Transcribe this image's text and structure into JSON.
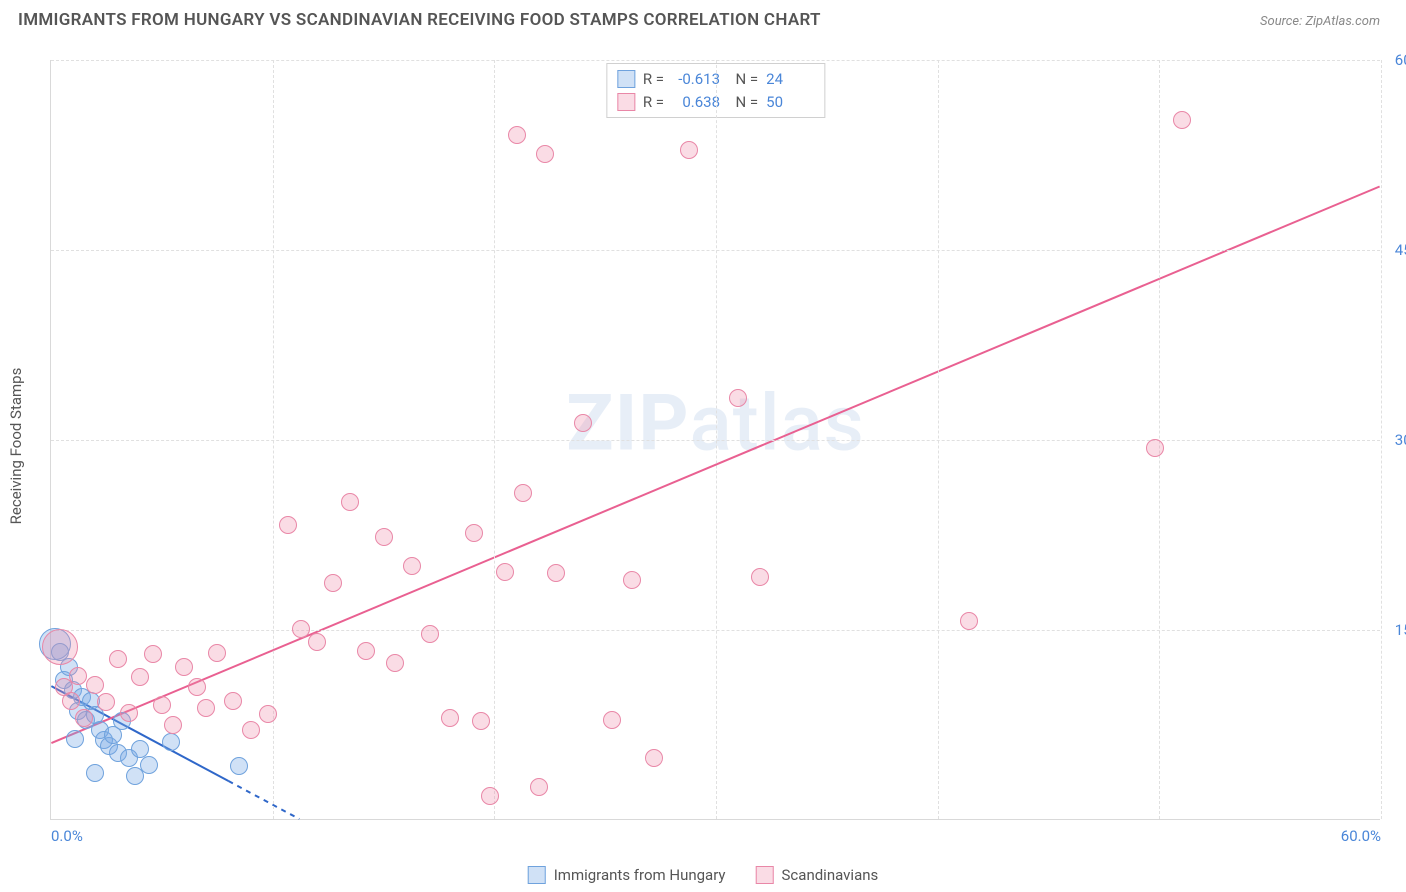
{
  "title": "IMMIGRANTS FROM HUNGARY VS SCANDINAVIAN RECEIVING FOOD STAMPS CORRELATION CHART",
  "source_label": "Source:",
  "source_value": "ZipAtlas.com",
  "ylabel": "Receiving Food Stamps",
  "watermark_bold": "ZIP",
  "watermark_rest": "atlas",
  "chart": {
    "type": "scatter",
    "xlim": [
      0,
      60
    ],
    "ylim": [
      0,
      60
    ],
    "xticks": [
      0,
      60
    ],
    "xtick_labels": [
      "0.0%",
      "60.0%"
    ],
    "yticks": [
      15,
      30,
      45,
      60
    ],
    "ytick_labels": [
      "15.0%",
      "30.0%",
      "45.0%",
      "60.0%"
    ],
    "vgrid": [
      10,
      20,
      30,
      40,
      50,
      60
    ],
    "background_color": "#ffffff",
    "grid_color": "#e0e0e0",
    "axis_color": "#d9d9d9",
    "tick_font_color": "#4a86d8",
    "marker_radius": 9,
    "marker_stroke_width": 1.2,
    "line_width": 2
  },
  "series": [
    {
      "key": "hungary",
      "name": "Immigrants from Hungary",
      "fill_color": "rgba(120, 170, 230, 0.35)",
      "stroke_color": "#6fa2dd",
      "line_color": "#2f67c9",
      "R_label": "R =",
      "R_value": "-0.613",
      "N_label": "N =",
      "N_value": "24",
      "trend": {
        "x0": 0,
        "y0": 10.5,
        "x1": 11.2,
        "y1": 0,
        "dash_after_x": 8
      },
      "points": [
        [
          0.2,
          13.8,
          16
        ],
        [
          0.4,
          13.2
        ],
        [
          0.6,
          11.0
        ],
        [
          0.8,
          12.0
        ],
        [
          1.0,
          10.2
        ],
        [
          1.2,
          8.5
        ],
        [
          1.4,
          9.6
        ],
        [
          1.6,
          7.8
        ],
        [
          1.8,
          9.3
        ],
        [
          1.1,
          6.3
        ],
        [
          2.0,
          8.2
        ],
        [
          2.2,
          7.0
        ],
        [
          2.4,
          6.2
        ],
        [
          2.6,
          5.8
        ],
        [
          2.8,
          6.6
        ],
        [
          3.0,
          5.2
        ],
        [
          3.2,
          7.7
        ],
        [
          3.5,
          4.8
        ],
        [
          4.0,
          5.5
        ],
        [
          4.4,
          4.3
        ],
        [
          2.0,
          3.6
        ],
        [
          3.8,
          3.4
        ],
        [
          5.4,
          6.1
        ],
        [
          8.5,
          4.2
        ]
      ]
    },
    {
      "key": "scandinavians",
      "name": "Scandinavians",
      "fill_color": "rgba(240, 140, 170, 0.30)",
      "stroke_color": "#e987a7",
      "line_color": "#e96091",
      "R_label": "R =",
      "R_value": "0.638",
      "N_label": "N =",
      "N_value": "50",
      "trend": {
        "x0": 0,
        "y0": 6.0,
        "x1": 60,
        "y1": 50
      },
      "points": [
        [
          0.4,
          13.6,
          18
        ],
        [
          0.6,
          10.4
        ],
        [
          0.9,
          9.3
        ],
        [
          1.2,
          11.3
        ],
        [
          1.5,
          8.0
        ],
        [
          2.0,
          10.6
        ],
        [
          2.5,
          9.2
        ],
        [
          3.0,
          12.6
        ],
        [
          3.5,
          8.4
        ],
        [
          4.0,
          11.2
        ],
        [
          4.6,
          13.0
        ],
        [
          5.0,
          9.0
        ],
        [
          5.5,
          7.4
        ],
        [
          6.0,
          12.0
        ],
        [
          6.6,
          10.4
        ],
        [
          7.0,
          8.8
        ],
        [
          7.5,
          13.1
        ],
        [
          8.2,
          9.3
        ],
        [
          9.0,
          7.0
        ],
        [
          9.8,
          8.3
        ],
        [
          10.7,
          23.2
        ],
        [
          11.3,
          15.0
        ],
        [
          12.0,
          14.0
        ],
        [
          12.7,
          18.6
        ],
        [
          13.5,
          25.0
        ],
        [
          14.2,
          13.3
        ],
        [
          15.0,
          22.3
        ],
        [
          15.5,
          12.3
        ],
        [
          16.3,
          20.0
        ],
        [
          17.1,
          14.6
        ],
        [
          18.0,
          8.0
        ],
        [
          19.1,
          22.6
        ],
        [
          19.4,
          7.7
        ],
        [
          20.5,
          19.5
        ],
        [
          21.3,
          25.7
        ],
        [
          21.0,
          54
        ],
        [
          22.3,
          52.5
        ],
        [
          22.8,
          19.4
        ],
        [
          24.0,
          31.3
        ],
        [
          25.3,
          7.8
        ],
        [
          26.2,
          18.9
        ],
        [
          27.2,
          4.8
        ],
        [
          28.8,
          52.8
        ],
        [
          19.8,
          1.8
        ],
        [
          31.0,
          33.2
        ],
        [
          32.0,
          19.1
        ],
        [
          41.4,
          15.6
        ],
        [
          49.8,
          29.3
        ],
        [
          51.0,
          55.2
        ],
        [
          22.0,
          2.5
        ]
      ]
    }
  ],
  "bottom_legend": [
    {
      "series": "hungary"
    },
    {
      "series": "scandinavians"
    }
  ]
}
